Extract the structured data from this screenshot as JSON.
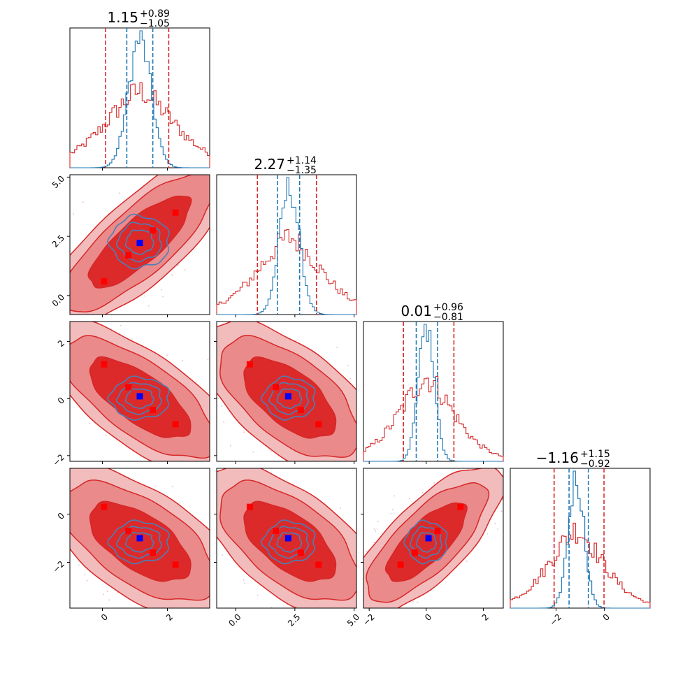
{
  "chart_data": {
    "type": "corner",
    "parameters": 4,
    "titles": [
      {
        "value": "1.15",
        "plus": "+0.89",
        "minus": "−1.05"
      },
      {
        "value": "2.27",
        "plus": "+1.14",
        "minus": "−1.35"
      },
      {
        "value": "0.01",
        "plus": "+0.96",
        "minus": "−0.81"
      },
      {
        "value": "−1.16",
        "plus": "+1.15",
        "minus": "−0.92"
      }
    ],
    "ranges": [
      [
        -1.0,
        3.3
      ],
      [
        -0.8,
        5.1
      ],
      [
        -2.2,
        2.7
      ],
      [
        -3.9,
        1.9
      ]
    ],
    "ticks": [
      {
        "values": [
          0,
          2
        ],
        "labels": [
          "0",
          "2"
        ]
      },
      {
        "values": [
          0.0,
          2.5,
          5.0
        ],
        "labels": [
          "0.0",
          "2.5",
          "5.0"
        ]
      },
      {
        "values": [
          -2,
          0,
          2
        ],
        "labels": [
          "−2",
          "0",
          "2"
        ]
      },
      {
        "values": [
          -2,
          0
        ],
        "labels": [
          "−2",
          "0"
        ]
      }
    ],
    "series": [
      {
        "name": "",
        "color": "#d62728",
        "fill_colors": [
          "#f2bcbc",
          "#ea8a8a",
          "#dc2a2a"
        ],
        "medians": [
          1.15,
          2.27,
          0.01,
          -1.16
        ],
        "sigma": [
          1.0,
          1.25,
          0.9,
          1.05
        ],
        "quantiles": [
          [
            0.1,
            2.04
          ],
          [
            0.92,
            3.41
          ],
          [
            -0.8,
            0.97
          ],
          [
            -2.08,
            -0.01
          ]
        ],
        "corr": [
          [
            1,
            0.8,
            -0.7,
            -0.6
          ],
          [
            0.8,
            1,
            -0.6,
            -0.6
          ],
          [
            -0.7,
            -0.6,
            1,
            0.75
          ],
          [
            -0.6,
            -0.6,
            0.75,
            1
          ]
        ]
      },
      {
        "name": "",
        "color": "#1f77b4",
        "contour_color": "#4a7fb8",
        "medians": [
          1.15,
          2.27,
          0.01,
          -1.16
        ],
        "sigma": [
          0.35,
          0.42,
          0.28,
          0.33
        ],
        "quantiles": [
          [
            0.75,
            1.55
          ],
          [
            1.76,
            2.7
          ],
          [
            -0.35,
            0.4
          ],
          [
            -1.46,
            -0.66
          ]
        ],
        "corr": [
          [
            1,
            0,
            0,
            0
          ],
          [
            0,
            1,
            0,
            0
          ],
          [
            0,
            0,
            1,
            0
          ],
          [
            0,
            0,
            0,
            1
          ]
        ]
      }
    ],
    "markers": {
      "red_color": "#ff0000",
      "blue_color": "#0000ff",
      "red_points": [
        [
          0.05,
          0.6,
          1.2,
          0.3
        ],
        [
          0.8,
          1.7,
          0.4,
          -0.7
        ],
        [
          1.55,
          2.75,
          -0.4,
          -1.6
        ],
        [
          2.25,
          3.5,
          -0.9,
          -2.1
        ]
      ],
      "blue_point": [
        1.15,
        2.22,
        0.08,
        -1.0
      ]
    },
    "grid": false,
    "legend": "none"
  }
}
